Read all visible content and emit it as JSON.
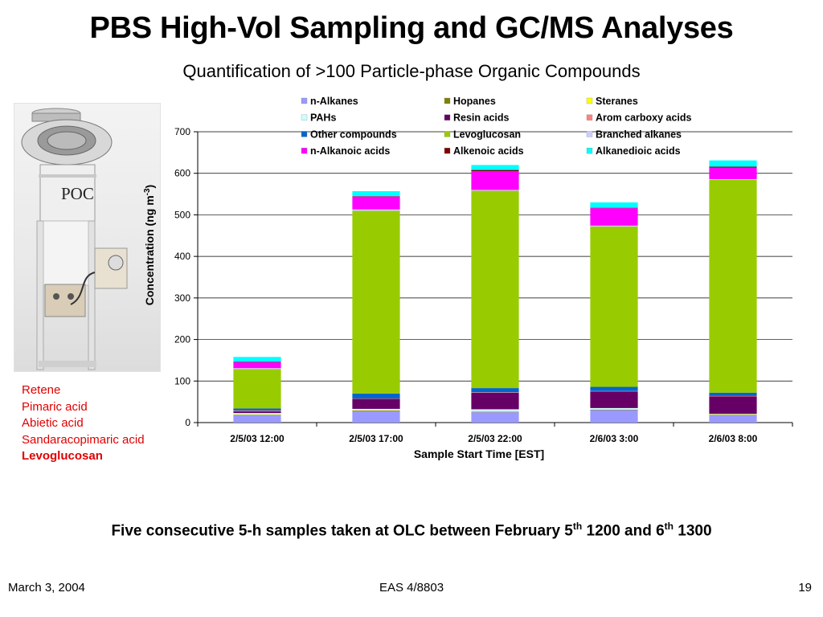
{
  "slide": {
    "title": "PBS High-Vol Sampling and GC/MS Analyses",
    "subtitle": "Quantification of >100 Particle-phase Organic Compounds",
    "photo_label": "POC",
    "compounds": [
      "Retene",
      "Pimaric acid",
      "Abietic acid",
      "Sandaracopimaric acid",
      "Levoglucosan"
    ],
    "caption": {
      "part1": "Five consecutive 5-h samples taken at OLC between February 5",
      "sup1": "th",
      "part2": " 1200 and 6",
      "sup2": "th",
      "part3": " 1300"
    },
    "footer": {
      "date": "March 3, 2004",
      "course": "EAS 4/8803",
      "page": "19"
    }
  },
  "chart_data": {
    "type": "bar",
    "stacked": true,
    "categories": [
      "2/5/03 12:00",
      "2/5/03 17:00",
      "2/5/03 22:00",
      "2/6/03 3:00",
      "2/6/03 8:00"
    ],
    "xlabel": "Sample Start Time [EST]",
    "ylabel": "Concentration (ng m",
    "ylabel_sup": "-3",
    "ylabel_close": ")",
    "ylim": [
      0,
      700
    ],
    "yticks": [
      0,
      100,
      200,
      300,
      400,
      500,
      600,
      700
    ],
    "grid": true,
    "legend_position": "top",
    "series": [
      {
        "name": "n-Alkanes",
        "color": "#9999ff",
        "values": [
          18,
          28,
          25,
          30,
          18
        ]
      },
      {
        "name": "Hopanes",
        "color": "#808000",
        "values": [
          1,
          1,
          1,
          1,
          1
        ]
      },
      {
        "name": "Steranes",
        "color": "#ffff00",
        "values": [
          1,
          1,
          1,
          1,
          1
        ]
      },
      {
        "name": "PAHs",
        "color": "#ccffff",
        "values": [
          3,
          3,
          5,
          3,
          1
        ]
      },
      {
        "name": "Resin acids",
        "color": "#660066",
        "values": [
          4,
          24,
          40,
          40,
          42
        ]
      },
      {
        "name": "Arom carboxy acids",
        "color": "#ff8080",
        "values": [
          2,
          1,
          1,
          1,
          1
        ]
      },
      {
        "name": "Other compounds",
        "color": "#0066cc",
        "values": [
          5,
          12,
          10,
          10,
          8
        ]
      },
      {
        "name": "Levoglucosan",
        "color": "#99cc00",
        "values": [
          95,
          440,
          475,
          386,
          512
        ]
      },
      {
        "name": "Branched alkanes",
        "color": "#ccccff",
        "values": [
          2,
          3,
          2,
          2,
          2
        ]
      },
      {
        "name": "n-Alkanoic acids",
        "color": "#ff00ff",
        "values": [
          14,
          31,
          45,
          42,
          28
        ]
      },
      {
        "name": "Alkenoic acids",
        "color": "#800000",
        "values": [
          1,
          1,
          3,
          1,
          2
        ]
      },
      {
        "name": "Alkanedioic acids",
        "color": "#00ffff",
        "values": [
          12,
          12,
          12,
          13,
          15
        ]
      }
    ]
  }
}
